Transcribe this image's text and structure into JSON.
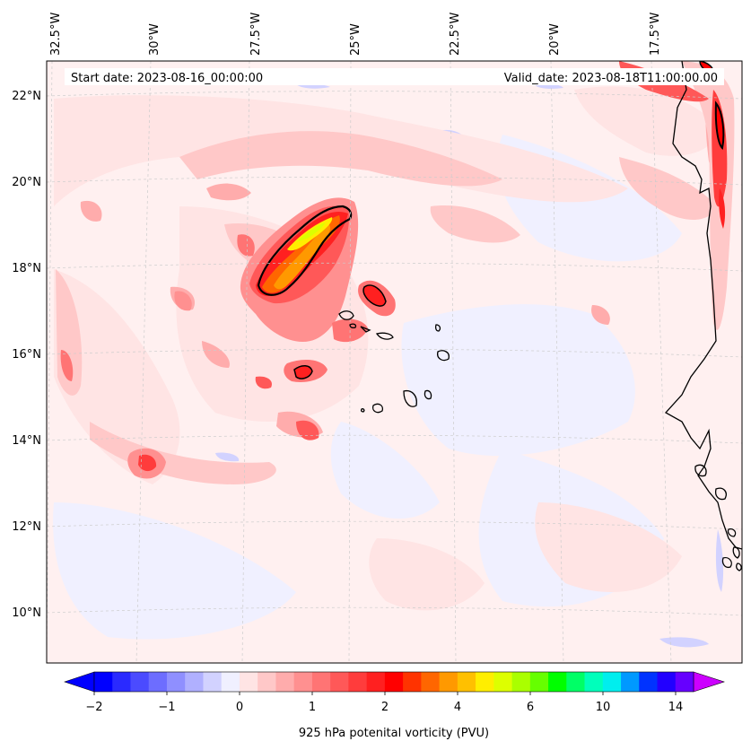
{
  "map": {
    "start_label": "Start date: 2023-08-16_00:00:00",
    "valid_label": "Valid_date: 2023-08-18T11:00:00.00",
    "lon_labels": [
      "32.5°W",
      "30°W",
      "27.5°W",
      "25°W",
      "22.5°W",
      "20°W",
      "17.5°W"
    ],
    "lat_labels": [
      "22°N",
      "20°N",
      "18°N",
      "16°N",
      "14°N",
      "12°N",
      "10°N"
    ],
    "colorbar": {
      "label": "925 hPa potenital vorticity (PVU)",
      "tick_labels": [
        "−2",
        "−1",
        "0",
        "1",
        "2",
        "4",
        "6",
        "10",
        "14"
      ],
      "colors": [
        "#0000ff",
        "#2a2aff",
        "#4b4bff",
        "#6d6dff",
        "#8f8fff",
        "#b0b0ff",
        "#d2d2ff",
        "#f0f0ff",
        "#ffe4e4",
        "#ffc8c8",
        "#ffacac",
        "#ff9090",
        "#ff7474",
        "#ff5858",
        "#ff3c3c",
        "#ff2020",
        "#ff0000",
        "#ff3300",
        "#ff6600",
        "#ff9900",
        "#ffc000",
        "#ffee00",
        "#ddff00",
        "#aaff00",
        "#66ff00",
        "#00ff00",
        "#00ff66",
        "#00ffbb",
        "#00eeee",
        "#0099ff",
        "#0033ff",
        "#2200ff",
        "#6600ff"
      ],
      "under_color": "#0000ff",
      "over_color": "#cc00ff"
    },
    "colors": {
      "background": "#fff0f0",
      "coast": "#000000",
      "contour": "#000000",
      "grid": "#cccccc"
    }
  }
}
